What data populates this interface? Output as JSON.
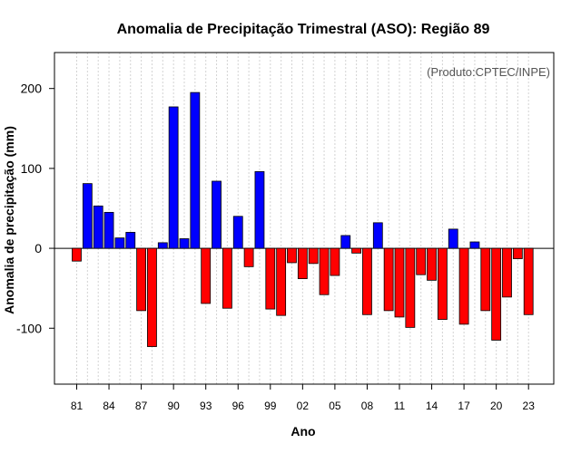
{
  "chart_data": {
    "type": "bar",
    "title": "Anomalia de Precipitação Trimestral (ASO): Região 89",
    "xlabel": "Ano",
    "ylabel": "Anomalia de precipitação (mm)",
    "credit": "(Produto:CPTEC/INPE)",
    "ylim": [
      -170,
      245
    ],
    "yticks": [
      -100,
      0,
      100,
      200
    ],
    "ytick_labels": [
      "-100",
      "0",
      "100",
      "200"
    ],
    "xtick_labels": [
      "81",
      "84",
      "87",
      "90",
      "93",
      "96",
      "99",
      "02",
      "05",
      "08",
      "11",
      "14",
      "17",
      "20",
      "23"
    ],
    "categories": [
      "1981",
      "1982",
      "1983",
      "1984",
      "1985",
      "1986",
      "1987",
      "1988",
      "1989",
      "1990",
      "1991",
      "1992",
      "1993",
      "1994",
      "1995",
      "1996",
      "1997",
      "1998",
      "1999",
      "2000",
      "2001",
      "2002",
      "2003",
      "2004",
      "2005",
      "2006",
      "2007",
      "2008",
      "2009",
      "2010",
      "2011",
      "2012",
      "2013",
      "2014",
      "2015",
      "2016",
      "2017",
      "2018",
      "2019",
      "2020",
      "2021",
      "2022",
      "2023"
    ],
    "values": [
      -16,
      81,
      53,
      45,
      13,
      20,
      -78,
      -123,
      7,
      177,
      12,
      195,
      -69,
      84,
      -75,
      40,
      -23,
      96,
      -76,
      -84,
      -18,
      -38,
      -19,
      -58,
      -34,
      16,
      -6,
      -83,
      32,
      -78,
      -86,
      -99,
      -33,
      -40,
      -89,
      24,
      -95,
      8,
      -78,
      -115,
      -61,
      -13,
      -83
    ],
    "colors": {
      "positive": "#0000ff",
      "negative": "#ff0000",
      "grid": "#d3d3d3",
      "axis": "#000000",
      "credit": "#555555"
    },
    "grid": true
  }
}
